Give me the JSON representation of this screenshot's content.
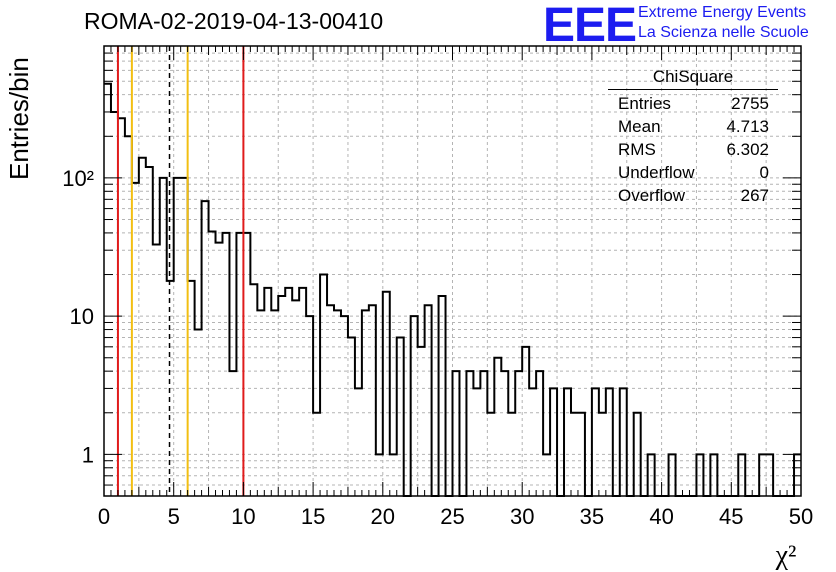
{
  "header": {
    "title": "ROMA-02-2019-04-13-00410"
  },
  "logo": {
    "mark": "EEE",
    "line1": "Extreme Energy Events",
    "line2": "La Scienza nelle Scuole"
  },
  "stats_box": {
    "title": "ChiSquare",
    "rows": [
      {
        "label": "Entries",
        "value": "2755"
      },
      {
        "label": "Mean",
        "value": "4.713"
      },
      {
        "label": "RMS",
        "value": "6.302"
      },
      {
        "label": "Underflow",
        "value": "0"
      },
      {
        "label": "Overflow",
        "value": "267"
      }
    ]
  },
  "chart_data": {
    "type": "bar",
    "histogram": true,
    "title": "ROMA-02-2019-04-13-00410",
    "xlabel": "χ²",
    "ylabel": "Entries/bin",
    "xlim": [
      0,
      50
    ],
    "ylim": [
      0.5,
      900
    ],
    "yscale": "log",
    "grid": true,
    "bin_width": 0.5,
    "x_ticks": [
      0,
      5,
      10,
      15,
      20,
      25,
      30,
      35,
      40,
      45,
      50
    ],
    "x_tick_labels": [
      "0",
      "5",
      "10",
      "15",
      "20",
      "25",
      "30",
      "35",
      "40",
      "45",
      "50"
    ],
    "y_ticks": [
      1,
      10,
      100
    ],
    "y_tick_labels": [
      "1",
      "10",
      "10²"
    ],
    "values": [
      480,
      300,
      270,
      200,
      92,
      140,
      120,
      33,
      100,
      18,
      100,
      100,
      18,
      8,
      68,
      41,
      34,
      40,
      4,
      40,
      40,
      17,
      11,
      16,
      11,
      14,
      16,
      13,
      16,
      10,
      2,
      20,
      12,
      11,
      10,
      7,
      3,
      11,
      12,
      1,
      15,
      1,
      7,
      0,
      10,
      6,
      12,
      0,
      14,
      0,
      4,
      0,
      4,
      3,
      4,
      2,
      5,
      4,
      2,
      4,
      6,
      3,
      4,
      1,
      3,
      0,
      3,
      2,
      2,
      0,
      3,
      2,
      3,
      0,
      3,
      0,
      2,
      0,
      1,
      0,
      0,
      1,
      0,
      0,
      0,
      1,
      0,
      1,
      0,
      0,
      0,
      1,
      0,
      0,
      1,
      1,
      0,
      0,
      0,
      1
    ],
    "vertical_lines": [
      {
        "x": 1.0,
        "color": "#e01b1b",
        "style": "solid"
      },
      {
        "x": 2.0,
        "color": "#f2bf12",
        "style": "solid"
      },
      {
        "x": 4.7,
        "color": "#000000",
        "style": "dashed"
      },
      {
        "x": 6.0,
        "color": "#f2bf12",
        "style": "solid"
      },
      {
        "x": 10.0,
        "color": "#e01b1b",
        "style": "solid"
      }
    ]
  }
}
